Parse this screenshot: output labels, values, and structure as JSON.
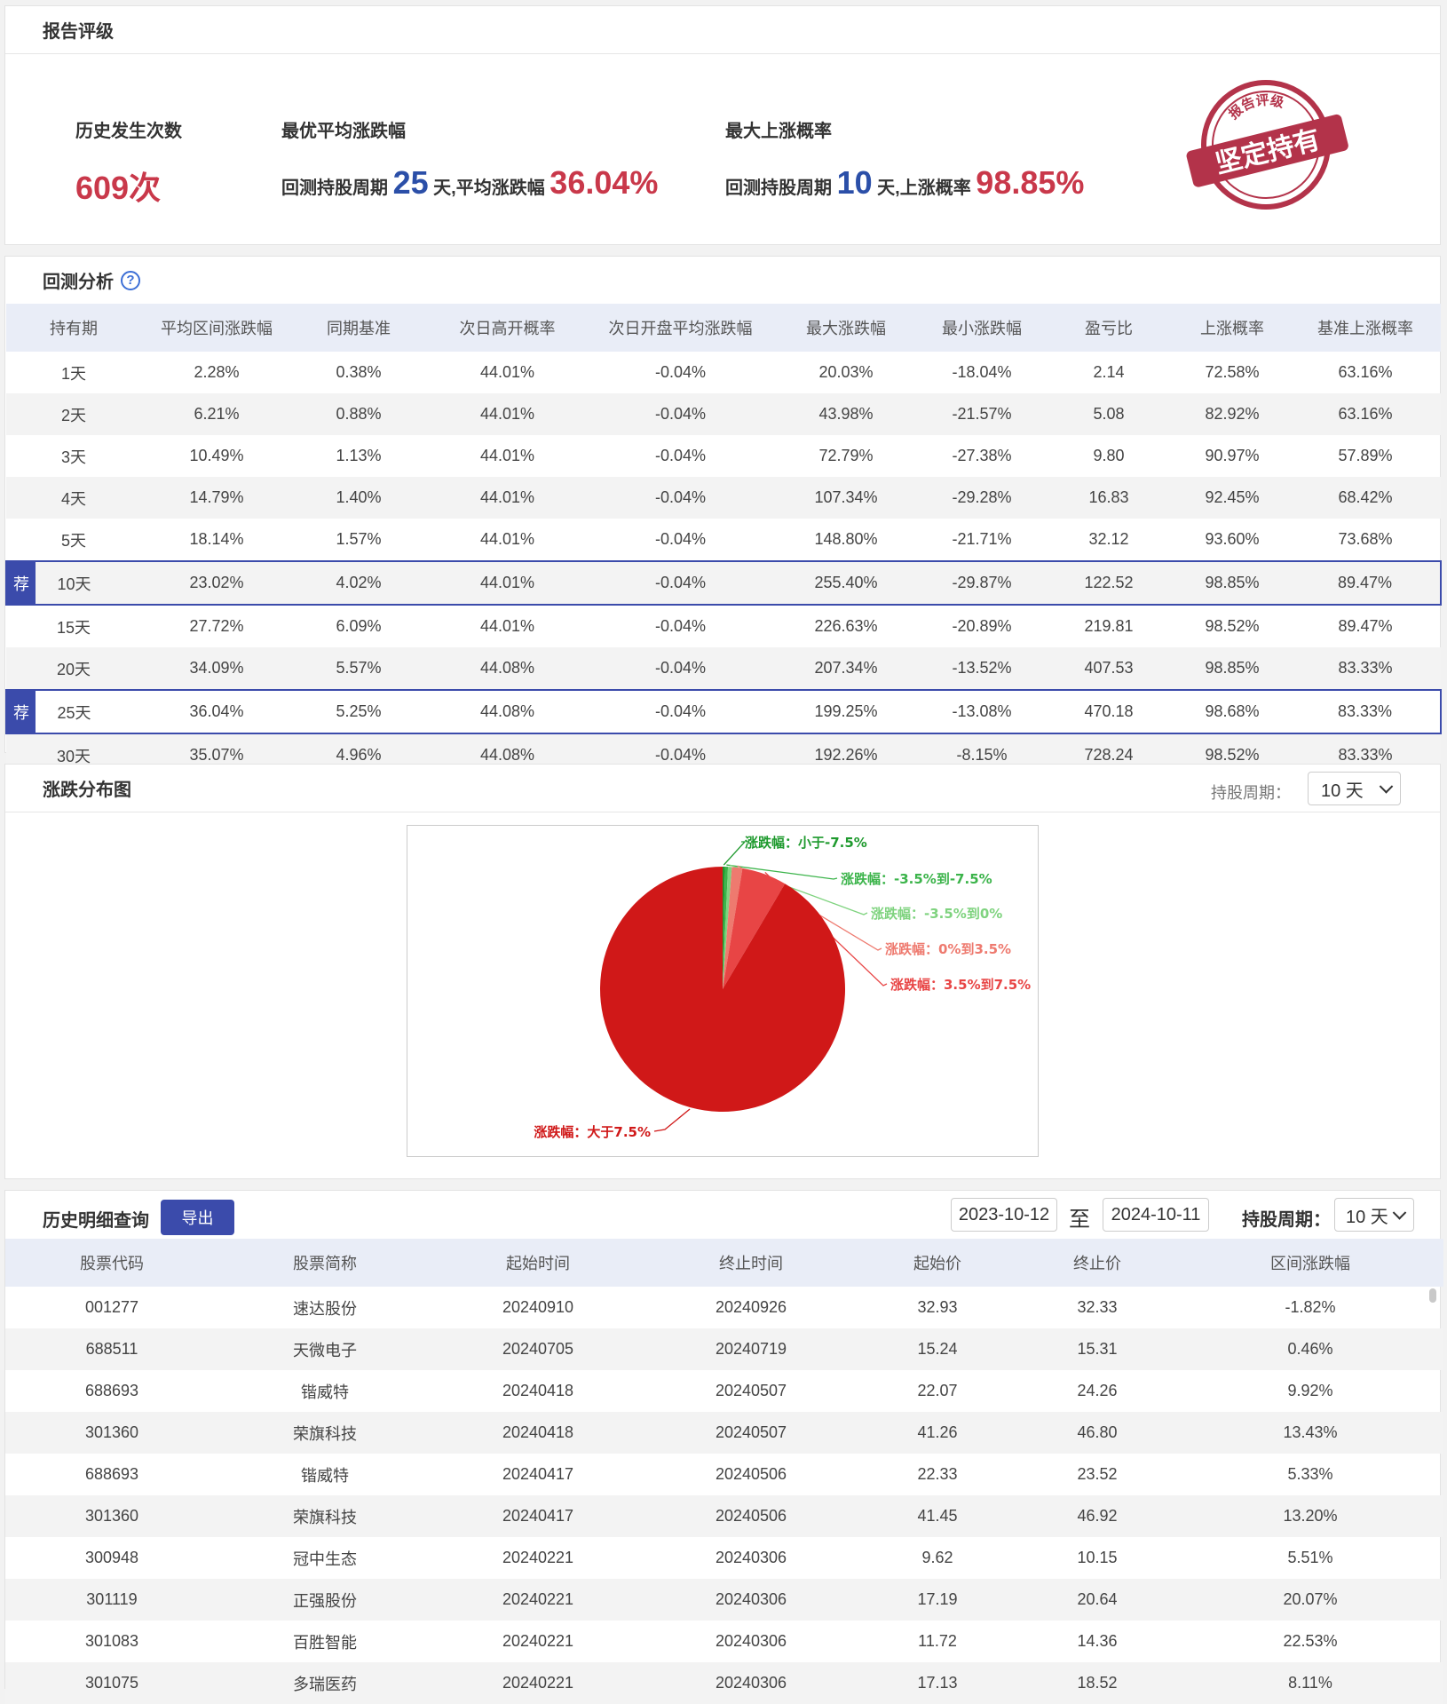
{
  "rating": {
    "title": "报告评级",
    "count_label": "历史发生次数",
    "count_value": "609次",
    "best_avg_label": "最优平均涨跌幅",
    "best_avg": {
      "prefix": "回测持股周期",
      "period": "25",
      "mid": "天,平均涨跌幅",
      "value": "36.04%"
    },
    "max_up_label": "最大上涨概率",
    "max_up": {
      "prefix": "回测持股周期",
      "period": "10",
      "mid": "天,上涨概率",
      "value": "98.85%"
    },
    "stamp": {
      "top_text": "报告评级",
      "main_text": "坚定持有"
    }
  },
  "backtest": {
    "title": "回测分析",
    "help_icon": "?",
    "headers": [
      "持有期",
      "平均区间涨跌幅",
      "同期基准",
      "次日高开概率",
      "次日开盘平均涨跌幅",
      "最大涨跌幅",
      "最小涨跌幅",
      "盈亏比",
      "上涨概率",
      "基准上涨概率"
    ],
    "recommend_badge": "荐",
    "rows": [
      {
        "cells": [
          "1天",
          "2.28%",
          "0.38%",
          "44.01%",
          "-0.04%",
          "20.03%",
          "-18.04%",
          "2.14",
          "72.58%",
          "63.16%"
        ],
        "rec": false
      },
      {
        "cells": [
          "2天",
          "6.21%",
          "0.88%",
          "44.01%",
          "-0.04%",
          "43.98%",
          "-21.57%",
          "5.08",
          "82.92%",
          "63.16%"
        ],
        "rec": false
      },
      {
        "cells": [
          "3天",
          "10.49%",
          "1.13%",
          "44.01%",
          "-0.04%",
          "72.79%",
          "-27.38%",
          "9.80",
          "90.97%",
          "57.89%"
        ],
        "rec": false
      },
      {
        "cells": [
          "4天",
          "14.79%",
          "1.40%",
          "44.01%",
          "-0.04%",
          "107.34%",
          "-29.28%",
          "16.83",
          "92.45%",
          "68.42%"
        ],
        "rec": false
      },
      {
        "cells": [
          "5天",
          "18.14%",
          "1.57%",
          "44.01%",
          "-0.04%",
          "148.80%",
          "-21.71%",
          "32.12",
          "93.60%",
          "73.68%"
        ],
        "rec": false
      },
      {
        "cells": [
          "10天",
          "23.02%",
          "4.02%",
          "44.01%",
          "-0.04%",
          "255.40%",
          "-29.87%",
          "122.52",
          "98.85%",
          "89.47%"
        ],
        "rec": true
      },
      {
        "cells": [
          "15天",
          "27.72%",
          "6.09%",
          "44.01%",
          "-0.04%",
          "226.63%",
          "-20.89%",
          "219.81",
          "98.52%",
          "89.47%"
        ],
        "rec": false
      },
      {
        "cells": [
          "20天",
          "34.09%",
          "5.57%",
          "44.08%",
          "-0.04%",
          "207.34%",
          "-13.52%",
          "407.53",
          "98.85%",
          "83.33%"
        ],
        "rec": false
      },
      {
        "cells": [
          "25天",
          "36.04%",
          "5.25%",
          "44.08%",
          "-0.04%",
          "199.25%",
          "-13.08%",
          "470.18",
          "98.68%",
          "83.33%"
        ],
        "rec": true
      },
      {
        "cells": [
          "30天",
          "35.07%",
          "4.96%",
          "44.08%",
          "-0.04%",
          "192.26%",
          "-8.15%",
          "728.24",
          "98.52%",
          "83.33%"
        ],
        "rec": false
      }
    ]
  },
  "distribution": {
    "title": "涨跌分布图",
    "period_label": "持股周期：",
    "period_value": "10 天"
  },
  "chart_data": {
    "type": "pie",
    "slices": [
      {
        "label": "涨跌幅：小于-7.5%",
        "value": 0.3,
        "color": "#1f9a2e"
      },
      {
        "label": "涨跌幅：-3.5%到-7.5%",
        "value": 0.4,
        "color": "#3cb44b"
      },
      {
        "label": "涨跌幅：-3.5%到0%",
        "value": 0.5,
        "color": "#7fd37f"
      },
      {
        "label": "涨跌幅：0%到3.5%",
        "value": 1.4,
        "color": "#ee7a6f"
      },
      {
        "label": "涨跌幅：3.5%到7.5%",
        "value": 5.9,
        "color": "#e84545"
      },
      {
        "label": "涨跌幅：大于7.5%",
        "value": 91.5,
        "color": "#d01818"
      }
    ]
  },
  "history": {
    "title": "历史明细查询",
    "export_label": "导出",
    "date_from": "2023-10-12",
    "to_label": "至",
    "date_to": "2024-10-11",
    "period_label": "持股周期：",
    "period_value": "10 天",
    "headers": [
      "股票代码",
      "股票简称",
      "起始时间",
      "终止时间",
      "起始价",
      "终止价",
      "区间涨跌幅"
    ],
    "rows": [
      {
        "code": "001277",
        "name": "速达股份",
        "start": "20240910",
        "end": "20240926",
        "p0": "32.93",
        "p1": "32.33",
        "chg": "-1.82%",
        "up": false
      },
      {
        "code": "688511",
        "name": "天微电子",
        "start": "20240705",
        "end": "20240719",
        "p0": "15.24",
        "p1": "15.31",
        "chg": "0.46%",
        "up": true
      },
      {
        "code": "688693",
        "name": "锴威特",
        "start": "20240418",
        "end": "20240507",
        "p0": "22.07",
        "p1": "24.26",
        "chg": "9.92%",
        "up": true
      },
      {
        "code": "301360",
        "name": "荣旗科技",
        "start": "20240418",
        "end": "20240507",
        "p0": "41.26",
        "p1": "46.80",
        "chg": "13.43%",
        "up": true
      },
      {
        "code": "688693",
        "name": "锴威特",
        "start": "20240417",
        "end": "20240506",
        "p0": "22.33",
        "p1": "23.52",
        "chg": "5.33%",
        "up": true
      },
      {
        "code": "301360",
        "name": "荣旗科技",
        "start": "20240417",
        "end": "20240506",
        "p0": "41.45",
        "p1": "46.92",
        "chg": "13.20%",
        "up": true
      },
      {
        "code": "300948",
        "name": "冠中生态",
        "start": "20240221",
        "end": "20240306",
        "p0": "9.62",
        "p1": "10.15",
        "chg": "5.51%",
        "up": true
      },
      {
        "code": "301119",
        "name": "正强股份",
        "start": "20240221",
        "end": "20240306",
        "p0": "17.19",
        "p1": "20.64",
        "chg": "20.07%",
        "up": true
      },
      {
        "code": "301083",
        "name": "百胜智能",
        "start": "20240221",
        "end": "20240306",
        "p0": "11.72",
        "p1": "14.36",
        "chg": "22.53%",
        "up": true
      },
      {
        "code": "301075",
        "name": "多瑞医药",
        "start": "20240221",
        "end": "20240306",
        "p0": "17.13",
        "p1": "18.52",
        "chg": "8.11%",
        "up": true
      }
    ]
  },
  "colors": {
    "accent": "#3b4bab",
    "up": "#e0334a",
    "down": "#19a035",
    "highlight": "#c9384a",
    "blue_number": "#2b4fa8"
  }
}
